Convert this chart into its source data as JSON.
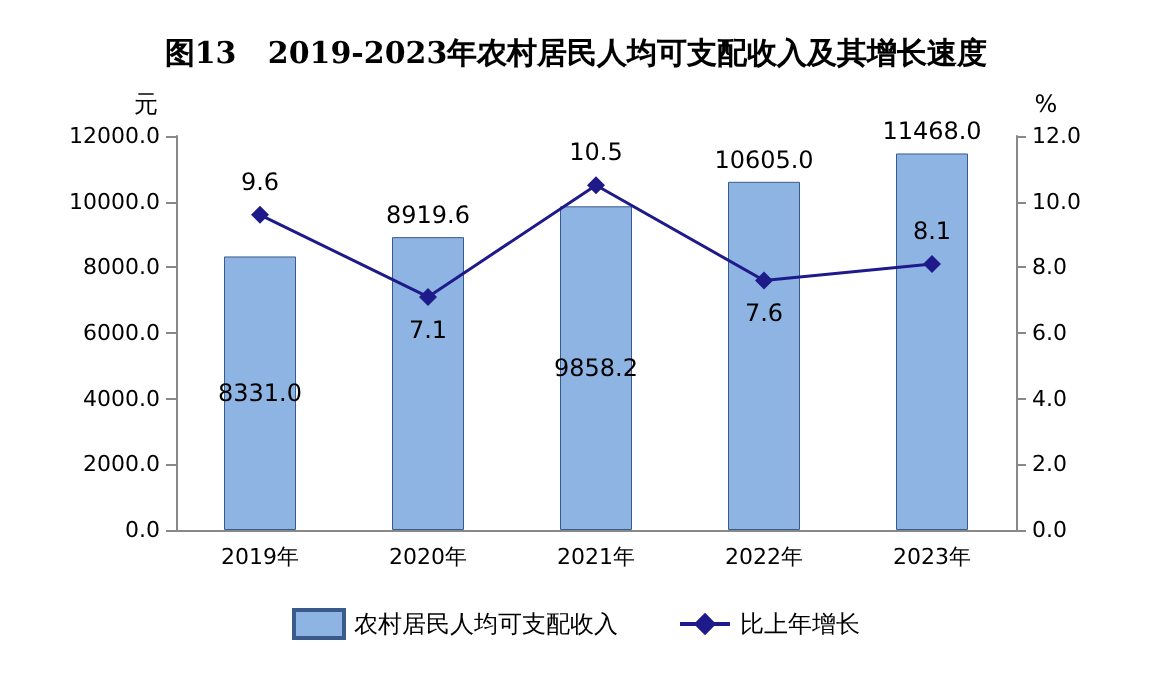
{
  "chart_data": {
    "type": "bar",
    "title": "图13   2019-2023年农村居民人均可支配收入及其增长速度",
    "categories": [
      "2019年",
      "2020年",
      "2021年",
      "2022年",
      "2023年"
    ],
    "series": [
      {
        "name": "农村居民人均可支配收入",
        "type": "bar",
        "color": "#8eb4e3",
        "values": [
          8331.0,
          8919.6,
          9858.2,
          10605.0,
          11468.0
        ],
        "value_labels": [
          "8331.0",
          "8919.6",
          "9858.2",
          "10605.0",
          "11468.0"
        ]
      },
      {
        "name": "比上年增长",
        "type": "line",
        "axis": "y2",
        "color": "#1f1a8a",
        "marker": "diamond",
        "values": [
          9.6,
          7.1,
          10.5,
          7.6,
          8.1
        ],
        "value_labels": [
          "9.6",
          "7.1",
          "10.5",
          "7.6",
          "8.1"
        ]
      }
    ],
    "ylabel": "元",
    "y2label": "%",
    "ylim": [
      0,
      12000
    ],
    "yticks": [
      {
        "value": 0,
        "label": "0.0"
      },
      {
        "value": 2000,
        "label": "2000.0"
      },
      {
        "value": 4000,
        "label": "4000.0"
      },
      {
        "value": 6000,
        "label": "6000.0"
      },
      {
        "value": 8000,
        "label": "8000.0"
      },
      {
        "value": 10000,
        "label": "10000.0"
      },
      {
        "value": 12000,
        "label": "12000.0"
      }
    ],
    "y2lim": [
      0,
      12
    ],
    "y2ticks": [
      {
        "value": 0,
        "label": "0.0"
      },
      {
        "value": 2,
        "label": "2.0"
      },
      {
        "value": 4,
        "label": "4.0"
      },
      {
        "value": 6,
        "label": "6.0"
      },
      {
        "value": 8,
        "label": "8.0"
      },
      {
        "value": 10,
        "label": "10.0"
      },
      {
        "value": 12,
        "label": "12.0"
      }
    ],
    "grid": false,
    "legend": "bottom"
  }
}
